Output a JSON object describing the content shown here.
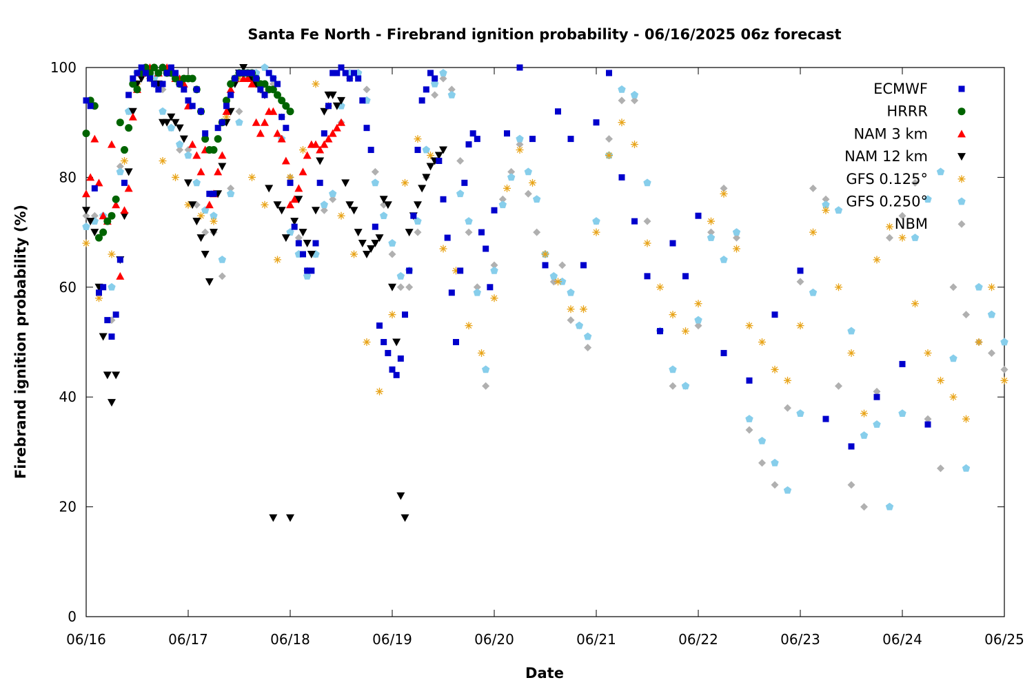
{
  "chart_data": {
    "type": "scatter",
    "title": "Santa Fe North - Firebrand ignition probability - 06/16/2025 06z forecast",
    "xlabel": "Date",
    "ylabel": "Firebrand ignition probability (%)",
    "xlim": [
      "06/16 00z",
      "06/25 00z"
    ],
    "ylim": [
      0,
      100
    ],
    "x_ticks": [
      "06/16",
      "06/17",
      "06/18",
      "06/19",
      "06/20",
      "06/21",
      "06/22",
      "06/23",
      "06/24",
      "06/25"
    ],
    "y_ticks": [
      "0",
      "20",
      "40",
      "60",
      "80",
      "100"
    ],
    "x_unit": "hours since 06/16 00z",
    "legend_position": "top-right",
    "grid": false,
    "series": [
      {
        "name": "ECMWF",
        "marker": "square",
        "color": "#0000cc",
        "x": [
          0,
          1,
          2,
          3,
          4,
          5,
          6,
          7,
          8,
          9,
          10,
          11,
          12,
          13,
          14,
          15,
          16,
          17,
          18,
          19,
          20,
          21,
          22,
          23,
          24,
          25,
          26,
          27,
          28,
          29,
          30,
          31,
          32,
          33,
          34,
          35,
          36,
          37,
          38,
          39,
          40,
          41,
          42,
          43,
          44,
          45,
          46,
          47,
          48,
          49,
          50,
          51,
          52,
          53,
          54,
          55,
          56,
          57,
          58,
          59,
          60,
          61,
          62,
          63,
          64,
          65,
          66,
          67,
          68,
          69,
          70,
          71,
          72,
          73,
          74,
          75,
          76,
          77,
          78,
          79,
          80,
          81,
          82,
          83,
          84,
          85,
          86,
          87,
          88,
          89,
          90,
          91,
          92,
          93,
          94,
          95,
          96,
          99,
          102,
          105,
          108,
          111,
          114,
          117,
          120,
          123,
          126,
          129,
          132,
          135,
          138,
          141,
          144,
          150,
          156,
          162,
          168,
          174,
          180,
          186,
          192,
          198
        ],
        "y": [
          94,
          93,
          78,
          59,
          60,
          54,
          51,
          55,
          65,
          79,
          95,
          98,
          99,
          100,
          99,
          98,
          97,
          96,
          97,
          99,
          100,
          99,
          97,
          96,
          94,
          93,
          96,
          92,
          88,
          77,
          77,
          89,
          90,
          93,
          95,
          98,
          99,
          99,
          99,
          99,
          98,
          96,
          95,
          99,
          98,
          97,
          91,
          89,
          79,
          71,
          68,
          66,
          63,
          63,
          68,
          79,
          88,
          93,
          99,
          99,
          100,
          99,
          98,
          99,
          98,
          94,
          89,
          85,
          71,
          53,
          50,
          48,
          45,
          44,
          47,
          55,
          63,
          73,
          85,
          94,
          96,
          99,
          98,
          83,
          76,
          69,
          59,
          50,
          63,
          79,
          86,
          88,
          87,
          70,
          67,
          60,
          74,
          88,
          100,
          87,
          64,
          92,
          87,
          64,
          90,
          99,
          80,
          72,
          62,
          52,
          68,
          62,
          73,
          48,
          43,
          55,
          63,
          36,
          31,
          40,
          46,
          35
        ],
        "y_note": "approximate"
      },
      {
        "name": "HRRR",
        "marker": "circle",
        "color": "#006400",
        "x": [
          0,
          1,
          2,
          3,
          4,
          5,
          6,
          7,
          8,
          9,
          10,
          11,
          12,
          13,
          14,
          15,
          16,
          17,
          18,
          19,
          20,
          21,
          22,
          23,
          24,
          25,
          26,
          27,
          28,
          29,
          30,
          31,
          32,
          33,
          34,
          35,
          36,
          37,
          38,
          39,
          40,
          41,
          42,
          43,
          44,
          45,
          46,
          47,
          48
        ],
        "y": [
          88,
          94,
          93,
          69,
          70,
          72,
          73,
          76,
          90,
          85,
          89,
          97,
          96,
          99,
          100,
          99,
          100,
          99,
          100,
          99,
          99,
          98,
          97,
          98,
          98,
          98,
          96,
          92,
          87,
          85,
          85,
          87,
          90,
          94,
          97,
          98,
          99,
          99,
          99,
          99,
          98,
          97,
          97,
          96,
          96,
          95,
          94,
          93,
          92
        ]
      },
      {
        "name": "NAM 3 km",
        "marker": "triangle-up",
        "color": "#ff0000",
        "x": [
          0,
          1,
          2,
          3,
          4,
          5,
          6,
          7,
          8,
          9,
          10,
          11,
          12,
          13,
          14,
          15,
          16,
          17,
          18,
          19,
          20,
          21,
          22,
          23,
          24,
          25,
          26,
          27,
          28,
          29,
          30,
          31,
          32,
          33,
          34,
          35,
          36,
          37,
          38,
          39,
          40,
          41,
          42,
          43,
          44,
          45,
          46,
          47,
          48,
          49,
          50,
          51,
          52,
          53,
          54,
          55,
          56,
          57,
          58,
          59,
          60
        ],
        "y": [
          77,
          80,
          87,
          79,
          73,
          72,
          86,
          75,
          62,
          74,
          78,
          91,
          96,
          99,
          100,
          100,
          100,
          99,
          100,
          100,
          99,
          98,
          98,
          97,
          93,
          86,
          84,
          81,
          85,
          75,
          77,
          81,
          84,
          92,
          96,
          98,
          99,
          98,
          98,
          97,
          90,
          88,
          90,
          92,
          92,
          88,
          87,
          83,
          75,
          76,
          78,
          81,
          84,
          86,
          86,
          85,
          86,
          87,
          88,
          89,
          90
        ]
      },
      {
        "name": "NAM 12 km",
        "marker": "triangle-down",
        "color": "#000000",
        "x": [
          0,
          1,
          2,
          3,
          4,
          5,
          6,
          7,
          8,
          9,
          10,
          11,
          12,
          13,
          14,
          15,
          16,
          17,
          18,
          19,
          20,
          21,
          22,
          23,
          24,
          25,
          26,
          27,
          28,
          29,
          30,
          31,
          32,
          33,
          34,
          35,
          36,
          37,
          38,
          39,
          40,
          41,
          42,
          43,
          44,
          45,
          46,
          47,
          48,
          49,
          50,
          51,
          52,
          53,
          54,
          55,
          56,
          57,
          58,
          59,
          60,
          61,
          62,
          63,
          64,
          65,
          66,
          67,
          68,
          69,
          70,
          71,
          72,
          73,
          74,
          75,
          76,
          77,
          78,
          79,
          80,
          81,
          82,
          83,
          84
        ],
        "y": [
          74,
          72,
          70,
          60,
          51,
          44,
          39,
          44,
          65,
          73,
          81,
          92,
          97,
          98,
          99,
          99,
          97,
          97,
          90,
          90,
          91,
          90,
          89,
          87,
          79,
          75,
          72,
          69,
          66,
          61,
          70,
          77,
          82,
          90,
          92,
          97,
          99,
          100,
          99,
          98,
          97,
          96,
          95,
          78,
          18,
          75,
          74,
          69,
          18,
          72,
          76,
          70,
          68,
          66,
          74,
          83,
          92,
          95,
          95,
          93,
          94,
          79,
          75,
          74,
          70,
          68,
          66,
          67,
          68,
          69,
          76,
          75,
          60,
          50,
          22,
          18,
          70,
          73,
          75,
          78,
          80,
          82,
          83,
          84,
          85
        ]
      },
      {
        "name": "GFS 0.125°",
        "marker": "asterisk",
        "color": "#e8a317",
        "x": [
          0,
          3,
          6,
          9,
          12,
          15,
          18,
          21,
          24,
          27,
          30,
          33,
          36,
          39,
          42,
          45,
          48,
          51,
          54,
          57,
          60,
          63,
          66,
          69,
          72,
          75,
          78,
          81,
          84,
          87,
          90,
          93,
          96,
          99,
          102,
          105,
          108,
          111,
          114,
          117,
          120,
          123,
          126,
          129,
          132,
          135,
          138,
          141,
          144,
          147,
          150,
          153,
          156,
          159,
          162,
          165,
          168,
          171,
          174,
          177,
          180,
          183,
          186,
          189,
          192,
          195,
          198,
          201,
          204,
          207,
          210,
          213,
          216
        ],
        "y": [
          68,
          58,
          66,
          83,
          97,
          98,
          83,
          80,
          75,
          73,
          72,
          91,
          98,
          80,
          75,
          65,
          80,
          85,
          97,
          93,
          73,
          66,
          50,
          41,
          55,
          79,
          87,
          84,
          67,
          63,
          53,
          48,
          58,
          78,
          85,
          79,
          66,
          61,
          56,
          56,
          70,
          84,
          90,
          86,
          68,
          60,
          55,
          52,
          57,
          72,
          77,
          67,
          53,
          50,
          45,
          43,
          53,
          70,
          74,
          60,
          48,
          37,
          65,
          71,
          69,
          57,
          48,
          43,
          40,
          36,
          50,
          60,
          43
        ],
        "y_note": "approximate"
      },
      {
        "name": "GFS 0.250°",
        "marker": "pentagon",
        "color": "#87ceeb",
        "x": [
          0,
          2,
          4,
          6,
          8,
          10,
          12,
          14,
          16,
          18,
          20,
          22,
          24,
          26,
          28,
          30,
          32,
          34,
          36,
          38,
          40,
          42,
          44,
          46,
          48,
          50,
          52,
          54,
          56,
          58,
          60,
          62,
          64,
          66,
          68,
          70,
          72,
          74,
          76,
          78,
          80,
          82,
          84,
          86,
          88,
          90,
          92,
          94,
          96,
          98,
          100,
          102,
          104,
          106,
          108,
          110,
          112,
          114,
          116,
          118,
          120,
          123,
          126,
          129,
          132,
          135,
          138,
          141,
          144,
          147,
          150,
          153,
          156,
          159,
          162,
          165,
          168,
          171,
          174,
          177,
          180,
          183,
          186,
          189,
          192,
          195,
          198,
          201,
          204,
          207,
          210,
          213,
          216
        ],
        "y": [
          71,
          72,
          73,
          60,
          81,
          92,
          99,
          99,
          98,
          92,
          89,
          86,
          84,
          79,
          74,
          73,
          65,
          77,
          90,
          98,
          99,
          100,
          98,
          87,
          70,
          66,
          62,
          66,
          75,
          77,
          93,
          99,
          99,
          94,
          79,
          73,
          68,
          62,
          63,
          72,
          85,
          97,
          99,
          95,
          77,
          72,
          59,
          45,
          63,
          75,
          80,
          87,
          81,
          76,
          66,
          62,
          61,
          59,
          53,
          51,
          72,
          84,
          96,
          95,
          79,
          52,
          45,
          42,
          54,
          69,
          65,
          70,
          36,
          32,
          28,
          23,
          37,
          59,
          75,
          74,
          52,
          33,
          35,
          20,
          37,
          69,
          76,
          81,
          47,
          27,
          60,
          55,
          50
        ]
      },
      {
        "name": "NBM",
        "marker": "diamond",
        "color": "#b0b0b0",
        "x": [
          0,
          2,
          4,
          6,
          8,
          10,
          12,
          14,
          16,
          18,
          20,
          22,
          24,
          26,
          28,
          30,
          32,
          34,
          36,
          38,
          40,
          42,
          44,
          46,
          48,
          50,
          52,
          54,
          56,
          58,
          60,
          62,
          64,
          66,
          68,
          70,
          72,
          74,
          76,
          78,
          80,
          82,
          84,
          86,
          88,
          90,
          92,
          94,
          96,
          98,
          100,
          102,
          104,
          106,
          108,
          110,
          112,
          114,
          116,
          118,
          120,
          123,
          126,
          129,
          132,
          135,
          138,
          141,
          144,
          147,
          150,
          153,
          156,
          159,
          162,
          165,
          168,
          171,
          174,
          177,
          180,
          183,
          186,
          189,
          192,
          195,
          198,
          201,
          204,
          207,
          210,
          213,
          216
        ],
        "y": [
          73,
          73,
          70,
          54,
          82,
          92,
          99,
          99,
          97,
          96,
          89,
          85,
          85,
          75,
          70,
          70,
          62,
          78,
          92,
          98,
          99,
          100,
          97,
          91,
          80,
          69,
          63,
          66,
          74,
          76,
          90,
          98,
          99,
          96,
          81,
          75,
          66,
          60,
          60,
          70,
          80,
          95,
          98,
          96,
          83,
          70,
          60,
          42,
          64,
          76,
          81,
          86,
          77,
          70,
          66,
          61,
          64,
          54,
          53,
          49,
          72,
          87,
          94,
          94,
          72,
          52,
          42,
          42,
          53,
          70,
          78,
          69,
          34,
          28,
          24,
          38,
          61,
          78,
          76,
          42,
          24,
          20,
          41,
          69,
          73,
          79,
          36,
          27,
          60,
          55,
          50,
          48,
          45
        ]
      }
    ]
  }
}
